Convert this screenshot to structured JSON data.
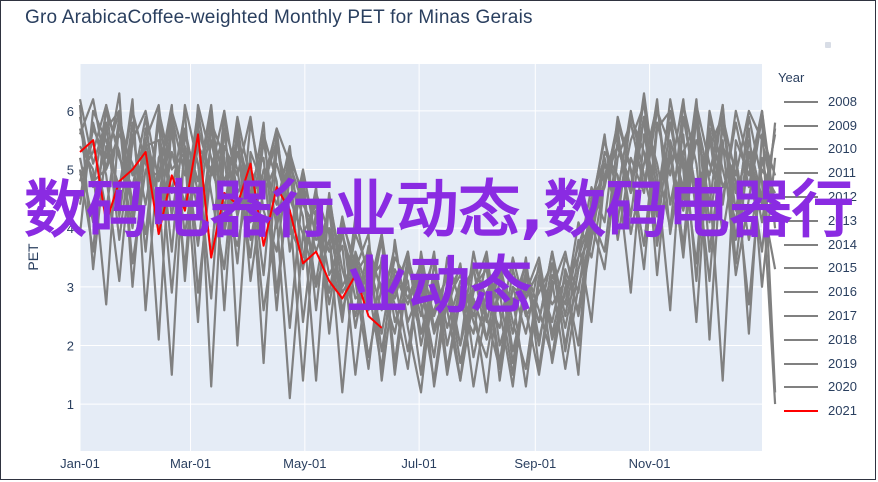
{
  "page": {
    "title": "Gro ArabicaCoffee-weighted Monthly PET for Minas Gerais",
    "overlay_text": "数码电器行业动态,数码电器行业动态"
  },
  "colors": {
    "plot_bg": "#e5ecf6",
    "grid": "#ffffff",
    "series_gray": "#808080",
    "series_highlight": "#ff0000",
    "text": "#2a3f5f",
    "overlay": "#8a2be2"
  },
  "legend": {
    "title": "Year",
    "items": [
      {
        "label": "2008",
        "color": "#808080"
      },
      {
        "label": "2009",
        "color": "#808080"
      },
      {
        "label": "2010",
        "color": "#808080"
      },
      {
        "label": "2011",
        "color": "#808080"
      },
      {
        "label": "2012",
        "color": "#808080"
      },
      {
        "label": "2013",
        "color": "#808080"
      },
      {
        "label": "2014",
        "color": "#808080"
      },
      {
        "label": "2015",
        "color": "#808080"
      },
      {
        "label": "2016",
        "color": "#808080"
      },
      {
        "label": "2017",
        "color": "#808080"
      },
      {
        "label": "2018",
        "color": "#808080"
      },
      {
        "label": "2019",
        "color": "#808080"
      },
      {
        "label": "2020",
        "color": "#808080"
      },
      {
        "label": "2021",
        "color": "#ff0000"
      }
    ]
  },
  "chart_data": {
    "type": "line",
    "title": "Gro ArabicaCoffee-weighted Monthly PET for Minas Gerais",
    "xlabel": "",
    "ylabel": "PET",
    "x_ticks": [
      "Jan-01",
      "Mar-01",
      "May-01",
      "Jul-01",
      "Sep-01",
      "Nov-01"
    ],
    "x_tick_days": [
      0,
      59,
      120,
      181,
      243,
      304
    ],
    "x_range_days": [
      0,
      364
    ],
    "y_ticks": [
      1,
      2,
      3,
      4,
      5,
      6
    ],
    "ylim": [
      0.2,
      6.8
    ],
    "grid": true,
    "legend_title": "Year",
    "legend_position": "right",
    "series": [
      {
        "name": "2008",
        "color": "#808080",
        "values": [
          5.6,
          6.2,
          5.0,
          6.3,
          3.0,
          5.5,
          4.1,
          5.8,
          3.3,
          6.1,
          5.2,
          4.0,
          5.6,
          3.1,
          4.7,
          5.7,
          5.1,
          2.4,
          4.3,
          3.6,
          3.9,
          2.8,
          3.0,
          1.6,
          3.8,
          2.3,
          1.2,
          3.2,
          2.6,
          1.4,
          2.8,
          2.1,
          3.4,
          1.7,
          3.0,
          2.4,
          3.6,
          1.9,
          3.3,
          4.0,
          4.8,
          5.4,
          4.6,
          6.2,
          3.7,
          5.2,
          4.3,
          6.0,
          2.1,
          5.5,
          3.2,
          4.5,
          5.9,
          1.2
        ]
      },
      {
        "name": "2009",
        "color": "#808080",
        "values": [
          4.9,
          5.3,
          6.1,
          4.2,
          5.8,
          3.6,
          5.9,
          4.6,
          6.0,
          2.9,
          5.0,
          4.4,
          3.7,
          4.9,
          2.6,
          4.2,
          1.1,
          3.9,
          3.1,
          4.4,
          2.6,
          3.4,
          1.8,
          3.0,
          2.2,
          3.5,
          2.7,
          1.4,
          3.1,
          2.0,
          3.6,
          2.5,
          1.6,
          3.0,
          2.2,
          3.4,
          2.1,
          2.9,
          3.7,
          4.4,
          5.5,
          4.6,
          6.0,
          4.9,
          3.9,
          5.8,
          4.5,
          6.2,
          3.6,
          5.4,
          4.8,
          2.7,
          5.2,
          4.1
        ]
      },
      {
        "name": "2010",
        "color": "#808080",
        "values": [
          5.2,
          4.1,
          5.7,
          6.0,
          4.4,
          5.3,
          2.1,
          5.9,
          4.9,
          5.5,
          3.5,
          6.0,
          4.6,
          5.0,
          3.2,
          5.6,
          4.0,
          3.5,
          4.7,
          2.2,
          4.1,
          3.4,
          2.6,
          3.8,
          1.5,
          3.3,
          2.8,
          3.5,
          2.0,
          3.0,
          1.3,
          2.7,
          3.3,
          2.2,
          3.5,
          1.6,
          3.2,
          2.7,
          4.1,
          3.5,
          4.8,
          5.7,
          3.9,
          5.1,
          6.1,
          4.4,
          5.6,
          3.1,
          5.9,
          4.7,
          5.2,
          3.8,
          5.0,
          4.6
        ]
      },
      {
        "name": "2011",
        "color": "#808080",
        "values": [
          6.1,
          3.3,
          5.4,
          4.7,
          6.0,
          5.1,
          4.6,
          1.5,
          5.6,
          4.8,
          6.1,
          3.9,
          5.3,
          4.4,
          5.8,
          2.9,
          4.9,
          4.2,
          1.4,
          4.5,
          3.3,
          2.5,
          3.7,
          2.9,
          3.1,
          1.9,
          3.4,
          2.5,
          3.2,
          1.7,
          2.9,
          3.6,
          2.0,
          2.8,
          1.3,
          3.1,
          2.4,
          3.5,
          2.9,
          4.5,
          5.2,
          4.1,
          5.9,
          5.3,
          4.2,
          6.2,
          5.0,
          2.4,
          5.7,
          4.4,
          6.0,
          5.1,
          3.6,
          5.8
        ]
      },
      {
        "name": "2012",
        "color": "#808080",
        "values": [
          4.5,
          5.8,
          4.9,
          3.1,
          5.5,
          6.0,
          4.8,
          5.6,
          4.3,
          5.9,
          1.3,
          5.4,
          4.9,
          5.9,
          4.3,
          3.6,
          5.2,
          4.6,
          3.0,
          3.8,
          2.4,
          4.2,
          3.1,
          3.4,
          2.7,
          1.6,
          3.6,
          2.3,
          2.9,
          3.3,
          2.4,
          1.8,
          3.1,
          2.6,
          3.2,
          2.0,
          3.4,
          2.3,
          3.5,
          4.2,
          3.6,
          5.5,
          4.7,
          6.3,
          4.6,
          5.3,
          3.5,
          5.9,
          4.8,
          1.4,
          5.5,
          4.9,
          6.0,
          4.0
        ]
      },
      {
        "name": "2013",
        "color": "#808080",
        "values": [
          5.9,
          4.7,
          6.0,
          5.3,
          4.0,
          5.7,
          4.5,
          6.0,
          5.2,
          2.4,
          5.7,
          4.8,
          5.5,
          3.8,
          5.0,
          4.4,
          5.4,
          3.3,
          4.6,
          3.9,
          1.2,
          3.6,
          2.9,
          3.9,
          2.4,
          3.0,
          2.2,
          3.2,
          1.5,
          2.8,
          3.3,
          2.1,
          2.9,
          1.5,
          3.3,
          2.6,
          1.8,
          3.3,
          2.6,
          4.1,
          4.7,
          5.8,
          5.0,
          3.3,
          5.7,
          6.0,
          4.3,
          5.5,
          4.9,
          6.1,
          3.4,
          5.3,
          4.4,
          5.6
        ]
      },
      {
        "name": "2014",
        "color": "#808080",
        "values": [
          3.9,
          6.0,
          5.5,
          4.6,
          6.2,
          2.6,
          5.2,
          5.7,
          3.9,
          5.4,
          5.0,
          6.0,
          2.0,
          5.3,
          4.7,
          5.5,
          3.9,
          5.0,
          3.8,
          4.0,
          2.9,
          3.3,
          3.9,
          1.4,
          3.2,
          2.7,
          3.3,
          2.2,
          3.0,
          1.4,
          3.4,
          2.8,
          2.3,
          3.5,
          2.6,
          1.5,
          3.0,
          3.6,
          2.5,
          3.8,
          5.1,
          4.4,
          5.5,
          6.1,
          4.9,
          2.6,
          5.9,
          4.6,
          5.4,
          5.9,
          4.3,
          5.7,
          3.0,
          5.2
        ]
      },
      {
        "name": "2015",
        "color": "#808080",
        "values": [
          5.4,
          5.0,
          2.7,
          5.9,
          4.9,
          5.5,
          6.1,
          4.2,
          5.7,
          4.6,
          6.0,
          2.6,
          5.8,
          4.1,
          5.6,
          4.8,
          2.3,
          4.7,
          4.2,
          2.7,
          3.9,
          3.1,
          1.6,
          3.5,
          2.8,
          3.6,
          2.0,
          3.1,
          2.6,
          3.4,
          1.8,
          2.9,
          3.4,
          2.4,
          1.6,
          3.2,
          2.7,
          3.1,
          2.0,
          4.3,
          5.6,
          3.8,
          5.2,
          4.6,
          6.0,
          5.4,
          3.7,
          6.1,
          5.1,
          4.5,
          5.8,
          4.7,
          6.0,
          4.3
        ]
      },
      {
        "name": "2016",
        "color": "#808080",
        "values": [
          4.8,
          5.5,
          4.3,
          5.9,
          3.4,
          5.0,
          4.9,
          6.1,
          3.1,
          5.7,
          4.9,
          5.6,
          4.2,
          5.2,
          1.7,
          5.4,
          4.5,
          3.9,
          4.4,
          3.2,
          3.7,
          1.5,
          3.4,
          2.6,
          3.7,
          2.4,
          3.0,
          1.8,
          3.5,
          2.7,
          2.2,
          3.5,
          1.4,
          3.0,
          2.8,
          3.3,
          1.7,
          3.0,
          3.5,
          4.7,
          4.1,
          5.9,
          5.0,
          3.7,
          5.8,
          4.9,
          6.2,
          4.2,
          5.6,
          3.9,
          5.3,
          2.2,
          5.6,
          4.9
        ]
      },
      {
        "name": "2017",
        "color": "#808080",
        "values": [
          6.2,
          5.1,
          5.8,
          3.8,
          5.6,
          4.4,
          5.8,
          3.6,
          6.1,
          5.1,
          2.8,
          5.7,
          5.0,
          3.5,
          5.5,
          4.0,
          5.3,
          4.5,
          3.6,
          4.3,
          2.5,
          3.9,
          3.3,
          2.2,
          3.5,
          3.1,
          1.5,
          3.4,
          2.3,
          3.1,
          2.7,
          1.2,
          3.2,
          2.7,
          3.4,
          2.1,
          3.1,
          1.6,
          3.0,
          3.9,
          5.3,
          4.9,
          2.9,
          5.6,
          4.5,
          6.0,
          5.2,
          3.4,
          6.0,
          5.0,
          4.1,
          5.9,
          4.8,
          1.0
        ]
      },
      {
        "name": "2018",
        "color": "#808080",
        "values": [
          5.0,
          3.6,
          6.1,
          5.2,
          4.7,
          5.9,
          3.9,
          5.3,
          4.4,
          6.0,
          4.6,
          3.3,
          5.6,
          4.6,
          4.8,
          5.7,
          3.6,
          4.9,
          2.6,
          4.6,
          3.0,
          3.5,
          2.7,
          3.9,
          1.7,
          3.4,
          2.5,
          3.6,
          1.6,
          2.9,
          3.3,
          2.4,
          3.4,
          1.9,
          2.9,
          3.5,
          2.2,
          3.2,
          1.5,
          4.5,
          4.9,
          5.6,
          4.2,
          5.9,
          3.2,
          5.5,
          4.7,
          6.0,
          4.1,
          5.7,
          4.6,
          5.3,
          4.1,
          5.7
        ]
      },
      {
        "name": "2019",
        "color": "#808080",
        "values": [
          4.4,
          5.7,
          5.2,
          6.0,
          4.2,
          5.4,
          5.5,
          2.9,
          5.4,
          4.3,
          5.8,
          5.2,
          3.4,
          5.8,
          4.6,
          5.1,
          4.3,
          1.4,
          4.3,
          3.6,
          4.0,
          2.3,
          3.5,
          3.0,
          2.9,
          3.6,
          2.2,
          2.6,
          3.2,
          2.0,
          3.0,
          3.3,
          1.7,
          3.3,
          2.5,
          2.9,
          3.4,
          2.0,
          3.3,
          4.1,
          3.3,
          5.2,
          5.8,
          4.7,
          6.2,
          3.9,
          5.3,
          5.8,
          4.4,
          6.1,
          3.8,
          5.5,
          4.5,
          3.3
        ]
      },
      {
        "name": "2020",
        "color": "#808080",
        "values": [
          5.7,
          4.8,
          5.0,
          5.6,
          5.1,
          3.9,
          6.0,
          5.0,
          5.3,
          3.7,
          5.5,
          4.3,
          5.9,
          4.8,
          5.2,
          2.6,
          5.1,
          4.4,
          4.0,
          2.9,
          4.2,
          3.2,
          3.6,
          1.9,
          3.3,
          2.8,
          3.4,
          1.3,
          2.8,
          3.2,
          2.5,
          3.4,
          2.6,
          1.3,
          3.2,
          2.4,
          3.6,
          2.5,
          3.8,
          2.4,
          4.9,
          5.4,
          4.6,
          5.9,
          5.1,
          4.0,
          6.1,
          5.1,
          3.1,
          5.9,
          4.9,
          6.0,
          5.5,
          4.4
        ]
      },
      {
        "name": "2021",
        "color": "#ff0000",
        "values": [
          5.3,
          5.5,
          4.1,
          4.8,
          5.0,
          5.3,
          3.9,
          4.9,
          4.3,
          5.6,
          3.5,
          4.6,
          4.4,
          5.1,
          3.7,
          4.7,
          4.3,
          3.4,
          3.6,
          3.1,
          2.8,
          3.2,
          2.5,
          2.3
        ]
      }
    ]
  }
}
